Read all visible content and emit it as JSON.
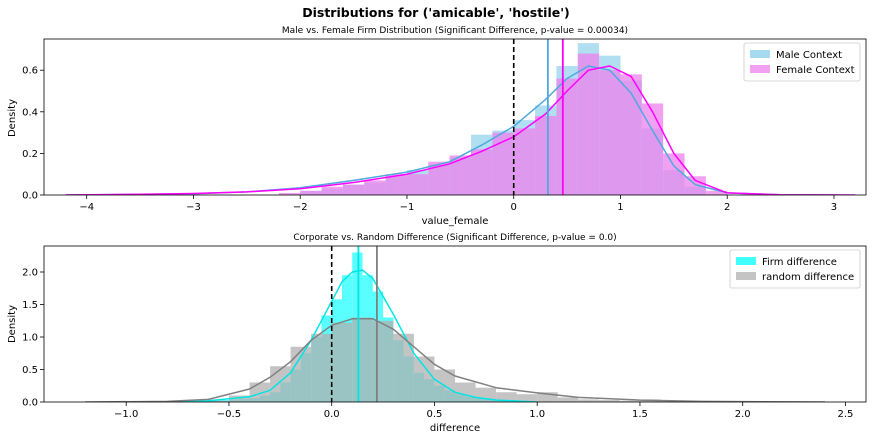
{
  "figure": {
    "suptitle": "Distributions for ('amicable', 'hostile')"
  },
  "chart_data": [
    {
      "type": "histogram",
      "title": "Male vs. Female Firm Distribution (Significant Difference, p-value = 0.00034)",
      "xlabel": "value_female",
      "ylabel": "Density",
      "xlim": [
        -4.4,
        3.3
      ],
      "ylim": [
        0,
        0.75
      ],
      "xticks": [
        -4,
        -3,
        -2,
        -1,
        0,
        1,
        2,
        3
      ],
      "yticks": [
        0.0,
        0.2,
        0.4,
        0.6
      ],
      "legend_position": "top-right",
      "series": [
        {
          "name": "Male Context",
          "color": "#87CEEB",
          "kde_color": "#4fa8df",
          "bins": [
            {
              "x0": -2.0,
              "x1": -1.8,
              "y": 0.02
            },
            {
              "x0": -1.8,
              "x1": -1.6,
              "y": 0.03
            },
            {
              "x0": -1.6,
              "x1": -1.4,
              "y": 0.05
            },
            {
              "x0": -1.4,
              "x1": -1.2,
              "y": 0.06
            },
            {
              "x0": -1.2,
              "x1": -1.0,
              "y": 0.09
            },
            {
              "x0": -1.0,
              "x1": -0.8,
              "y": 0.12
            },
            {
              "x0": -0.8,
              "x1": -0.6,
              "y": 0.15
            },
            {
              "x0": -0.6,
              "x1": -0.4,
              "y": 0.18
            },
            {
              "x0": -0.4,
              "x1": -0.2,
              "y": 0.29
            },
            {
              "x0": -0.2,
              "x1": 0.0,
              "y": 0.31
            },
            {
              "x0": 0.0,
              "x1": 0.2,
              "y": 0.36
            },
            {
              "x0": 0.2,
              "x1": 0.4,
              "y": 0.43
            },
            {
              "x0": 0.4,
              "x1": 0.6,
              "y": 0.62
            },
            {
              "x0": 0.6,
              "x1": 0.8,
              "y": 0.73
            },
            {
              "x0": 0.8,
              "x1": 1.0,
              "y": 0.67
            },
            {
              "x0": 1.0,
              "x1": 1.2,
              "y": 0.55
            },
            {
              "x0": 1.2,
              "x1": 1.4,
              "y": 0.32
            },
            {
              "x0": 1.4,
              "x1": 1.6,
              "y": 0.12
            },
            {
              "x0": 1.6,
              "x1": 1.8,
              "y": 0.04
            }
          ],
          "kde": {
            "x": [
              -4.2,
              -3.5,
              -3.0,
              -2.5,
              -2.0,
              -1.5,
              -1.0,
              -0.6,
              -0.3,
              0.0,
              0.3,
              0.5,
              0.7,
              0.9,
              1.1,
              1.3,
              1.5,
              1.7,
              2.0,
              2.5,
              3.0
            ],
            "y": [
              0.0,
              0.003,
              0.006,
              0.015,
              0.035,
              0.07,
              0.11,
              0.16,
              0.24,
              0.33,
              0.46,
              0.56,
              0.62,
              0.6,
              0.49,
              0.31,
              0.14,
              0.05,
              0.01,
              0.001,
              0.0
            ]
          },
          "mean": 0.32
        },
        {
          "name": "Female Context",
          "color": "#EE82EE",
          "kde_color": "#ff00ff",
          "bins": [
            {
              "x0": -2.2,
              "x1": -2.0,
              "y": 0.01
            },
            {
              "x0": -2.0,
              "x1": -1.8,
              "y": 0.02
            },
            {
              "x0": -1.8,
              "x1": -1.6,
              "y": 0.04
            },
            {
              "x0": -1.6,
              "x1": -1.4,
              "y": 0.05
            },
            {
              "x0": -1.4,
              "x1": -1.2,
              "y": 0.07
            },
            {
              "x0": -1.2,
              "x1": -1.0,
              "y": 0.1
            },
            {
              "x0": -1.0,
              "x1": -0.8,
              "y": 0.1
            },
            {
              "x0": -0.8,
              "x1": -0.6,
              "y": 0.16
            },
            {
              "x0": -0.6,
              "x1": -0.4,
              "y": 0.19
            },
            {
              "x0": -0.4,
              "x1": -0.2,
              "y": 0.22
            },
            {
              "x0": -0.2,
              "x1": 0.0,
              "y": 0.3
            },
            {
              "x0": 0.0,
              "x1": 0.2,
              "y": 0.32
            },
            {
              "x0": 0.2,
              "x1": 0.4,
              "y": 0.38
            },
            {
              "x0": 0.4,
              "x1": 0.6,
              "y": 0.56
            },
            {
              "x0": 0.6,
              "x1": 0.8,
              "y": 0.68
            },
            {
              "x0": 0.8,
              "x1": 1.0,
              "y": 0.6
            },
            {
              "x0": 1.0,
              "x1": 1.2,
              "y": 0.58
            },
            {
              "x0": 1.2,
              "x1": 1.4,
              "y": 0.44
            },
            {
              "x0": 1.4,
              "x1": 1.6,
              "y": 0.2
            },
            {
              "x0": 1.6,
              "x1": 1.8,
              "y": 0.09
            },
            {
              "x0": 1.8,
              "x1": 2.0,
              "y": 0.02
            }
          ],
          "kde": {
            "x": [
              -4.2,
              -3.5,
              -3.0,
              -2.5,
              -2.0,
              -1.5,
              -1.0,
              -0.6,
              -0.3,
              0.0,
              0.3,
              0.5,
              0.7,
              0.9,
              1.1,
              1.3,
              1.5,
              1.7,
              2.0,
              2.5,
              3.2
            ],
            "y": [
              0.0,
              0.004,
              0.007,
              0.015,
              0.03,
              0.06,
              0.1,
              0.15,
              0.21,
              0.28,
              0.39,
              0.5,
              0.6,
              0.62,
              0.57,
              0.4,
              0.2,
              0.07,
              0.01,
              0.001,
              0.0
            ]
          },
          "mean": 0.46
        }
      ],
      "reference_line": {
        "x": 0,
        "style": "dashed",
        "color": "#000000"
      }
    },
    {
      "type": "histogram",
      "title": "Corporate vs. Random Difference (Significant Difference, p-value = 0.0)",
      "xlabel": "difference",
      "ylabel": "Density",
      "xlim": [
        -1.4,
        2.6
      ],
      "ylim": [
        0,
        2.4
      ],
      "xticks": [
        -1.0,
        -0.5,
        0.0,
        0.5,
        1.0,
        1.5,
        2.0,
        2.5
      ],
      "yticks": [
        0.0,
        0.5,
        1.0,
        1.5,
        2.0
      ],
      "legend_position": "top-right",
      "series": [
        {
          "name": "Firm difference",
          "color": "#00FFFF",
          "kde_color": "#00e5e5",
          "bins": [
            {
              "x0": -0.6,
              "x1": -0.55,
              "y": 0.02
            },
            {
              "x0": -0.55,
              "x1": -0.5,
              "y": 0.03
            },
            {
              "x0": -0.5,
              "x1": -0.45,
              "y": 0.04
            },
            {
              "x0": -0.45,
              "x1": -0.4,
              "y": 0.05
            },
            {
              "x0": -0.4,
              "x1": -0.35,
              "y": 0.06
            },
            {
              "x0": -0.35,
              "x1": -0.3,
              "y": 0.1
            },
            {
              "x0": -0.3,
              "x1": -0.25,
              "y": 0.15
            },
            {
              "x0": -0.25,
              "x1": -0.2,
              "y": 0.3
            },
            {
              "x0": -0.2,
              "x1": -0.15,
              "y": 0.5
            },
            {
              "x0": -0.15,
              "x1": -0.1,
              "y": 0.75
            },
            {
              "x0": -0.1,
              "x1": -0.05,
              "y": 1.0
            },
            {
              "x0": -0.05,
              "x1": 0.0,
              "y": 1.33
            },
            {
              "x0": 0.0,
              "x1": 0.05,
              "y": 1.58
            },
            {
              "x0": 0.05,
              "x1": 0.1,
              "y": 1.95
            },
            {
              "x0": 0.1,
              "x1": 0.15,
              "y": 2.3
            },
            {
              "x0": 0.15,
              "x1": 0.2,
              "y": 1.95
            },
            {
              "x0": 0.2,
              "x1": 0.25,
              "y": 1.7
            },
            {
              "x0": 0.25,
              "x1": 0.3,
              "y": 1.3
            },
            {
              "x0": 0.3,
              "x1": 0.35,
              "y": 0.95
            },
            {
              "x0": 0.35,
              "x1": 0.4,
              "y": 0.7
            },
            {
              "x0": 0.4,
              "x1": 0.45,
              "y": 0.45
            },
            {
              "x0": 0.45,
              "x1": 0.5,
              "y": 0.35
            },
            {
              "x0": 0.5,
              "x1": 0.55,
              "y": 0.25
            },
            {
              "x0": 0.55,
              "x1": 0.6,
              "y": 0.18
            },
            {
              "x0": 0.6,
              "x1": 0.65,
              "y": 0.12
            },
            {
              "x0": 0.65,
              "x1": 0.7,
              "y": 0.08
            },
            {
              "x0": 0.7,
              "x1": 0.75,
              "y": 0.06
            },
            {
              "x0": 0.75,
              "x1": 0.8,
              "y": 0.05
            },
            {
              "x0": 0.8,
              "x1": 0.85,
              "y": 0.04
            },
            {
              "x0": 0.85,
              "x1": 0.9,
              "y": 0.03
            }
          ],
          "kde": {
            "x": [
              -0.8,
              -0.6,
              -0.4,
              -0.3,
              -0.2,
              -0.1,
              0.0,
              0.05,
              0.1,
              0.15,
              0.2,
              0.3,
              0.4,
              0.5,
              0.6,
              0.7,
              0.8,
              1.0
            ],
            "y": [
              0.0,
              0.02,
              0.08,
              0.18,
              0.45,
              0.95,
              1.55,
              1.85,
              2.0,
              2.03,
              1.9,
              1.35,
              0.75,
              0.35,
              0.15,
              0.07,
              0.03,
              0.0
            ]
          },
          "mean": 0.13
        },
        {
          "name": "random difference",
          "color": "#b0b0b0",
          "kde_color": "#808080",
          "bins": [
            {
              "x0": -1.2,
              "x1": -0.6,
              "y": 0.0
            },
            {
              "x0": -0.6,
              "x1": -0.5,
              "y": 0.02
            },
            {
              "x0": -0.5,
              "x1": -0.4,
              "y": 0.1
            },
            {
              "x0": -0.4,
              "x1": -0.3,
              "y": 0.3
            },
            {
              "x0": -0.3,
              "x1": -0.2,
              "y": 0.55
            },
            {
              "x0": -0.2,
              "x1": -0.1,
              "y": 0.85
            },
            {
              "x0": -0.1,
              "x1": 0.0,
              "y": 1.05
            },
            {
              "x0": 0.0,
              "x1": 0.1,
              "y": 1.22
            },
            {
              "x0": 0.1,
              "x1": 0.2,
              "y": 1.3
            },
            {
              "x0": 0.2,
              "x1": 0.3,
              "y": 1.25
            },
            {
              "x0": 0.3,
              "x1": 0.4,
              "y": 1.05
            },
            {
              "x0": 0.4,
              "x1": 0.5,
              "y": 0.7
            },
            {
              "x0": 0.5,
              "x1": 0.6,
              "y": 0.5
            },
            {
              "x0": 0.6,
              "x1": 0.7,
              "y": 0.3
            },
            {
              "x0": 0.7,
              "x1": 0.8,
              "y": 0.22
            },
            {
              "x0": 0.8,
              "x1": 0.9,
              "y": 0.15
            },
            {
              "x0": 0.9,
              "x1": 1.0,
              "y": 0.12
            },
            {
              "x0": 1.0,
              "x1": 1.1,
              "y": 0.15
            },
            {
              "x0": 1.1,
              "x1": 1.2,
              "y": 0.07
            },
            {
              "x0": 1.2,
              "x1": 1.3,
              "y": 0.04
            },
            {
              "x0": 1.3,
              "x1": 1.4,
              "y": 0.03
            },
            {
              "x0": 1.4,
              "x1": 1.5,
              "y": 0.02
            },
            {
              "x0": 1.5,
              "x1": 1.6,
              "y": 0.04
            },
            {
              "x0": 1.6,
              "x1": 1.8,
              "y": 0.01
            },
            {
              "x0": 1.8,
              "x1": 2.1,
              "y": 0.005
            }
          ],
          "kde": {
            "x": [
              -1.2,
              -0.8,
              -0.6,
              -0.4,
              -0.3,
              -0.2,
              -0.1,
              0.0,
              0.1,
              0.2,
              0.3,
              0.4,
              0.5,
              0.6,
              0.8,
              1.0,
              1.2,
              1.5,
              1.8,
              2.1,
              2.4
            ],
            "y": [
              0.0,
              0.01,
              0.04,
              0.2,
              0.38,
              0.62,
              0.95,
              1.18,
              1.28,
              1.28,
              1.12,
              0.85,
              0.58,
              0.4,
              0.22,
              0.14,
              0.07,
              0.03,
              0.01,
              0.003,
              0.0
            ]
          },
          "mean": 0.22
        }
      ],
      "reference_line": {
        "x": 0,
        "style": "dashed",
        "color": "#000000"
      }
    }
  ]
}
